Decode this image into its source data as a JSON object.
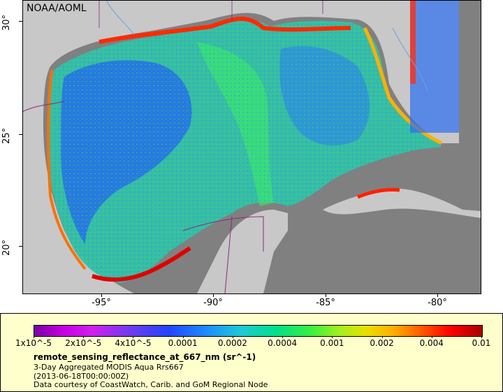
{
  "map": {
    "credit": "NOAA/AOML",
    "lat_ticks": [
      "30°",
      "25°",
      "20°"
    ],
    "lon_ticks": [
      "-95°",
      "-90°",
      "-85°",
      "-80°"
    ],
    "colors": {
      "land": "#c8c8c8",
      "no_data": "#808080",
      "borders": "#8b2a7a",
      "rivers": "#6ca0dc"
    }
  },
  "legend": {
    "colorbar_ticks": [
      "1x10^-5",
      "2x10^-5",
      "4x10^-5",
      "0.0001",
      "0.0002",
      "0.0004",
      "0.001",
      "0.002",
      "0.004",
      "0.01"
    ],
    "title": "remote_sensing_reflectance_at_667_nm (sr^-1)",
    "dataset": "3-Day Aggregated MODIS Aqua Rrs667",
    "date": "(2013-06-18T00:00:00Z)",
    "source": "Data courtesy of CoastWatch, Carib. and GoM Regional Node",
    "background": "#ffffcc"
  }
}
